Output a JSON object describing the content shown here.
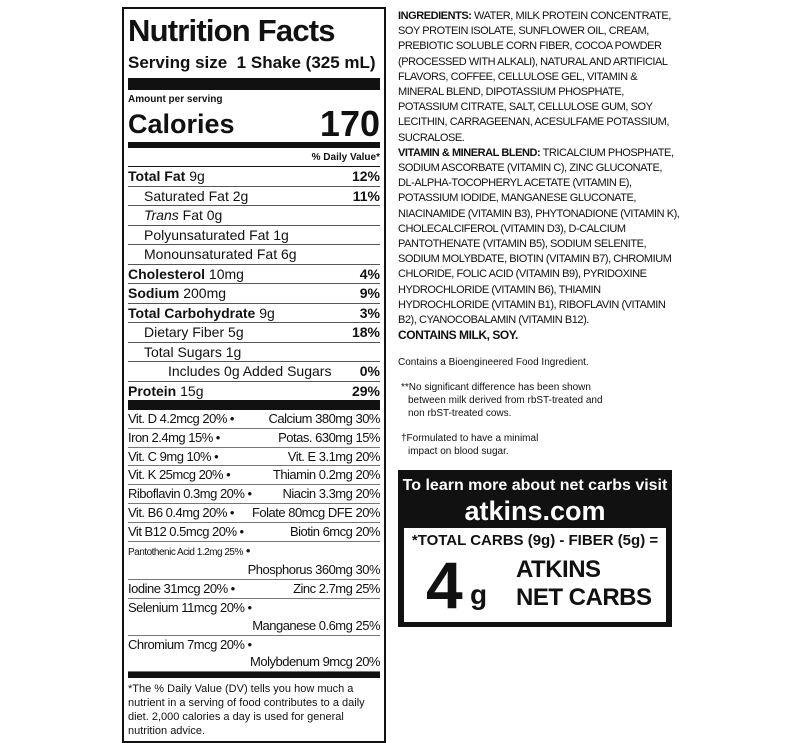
{
  "facts": {
    "title": "Nutrition Facts",
    "serving_label": "Serving size",
    "serving_value": "1 Shake (325 mL)",
    "amount_per_serving": "Amount per serving",
    "calories_label": "Calories",
    "calories_value": "170",
    "dv_header": "% Daily Value*",
    "rows": [
      {
        "name": "Total Fat",
        "amount": "9g",
        "dv": "12%"
      },
      {
        "name": "Saturated Fat",
        "amount": "2g",
        "dv": "11%"
      },
      {
        "name": "Trans",
        "amount": "Fat 0g",
        "dv": ""
      },
      {
        "name": "Polyunsaturated Fat",
        "amount": "1g",
        "dv": ""
      },
      {
        "name": "Monounsaturated Fat",
        "amount": "6g",
        "dv": ""
      },
      {
        "name": "Cholesterol",
        "amount": "10mg",
        "dv": "4%"
      },
      {
        "name": "Sodium",
        "amount": "200mg",
        "dv": "9%"
      },
      {
        "name": "Total Carbohydrate",
        "amount": "9g",
        "dv": "3%"
      },
      {
        "name": "Dietary Fiber",
        "amount": "5g",
        "dv": "18%"
      },
      {
        "name": "Total Sugars",
        "amount": "1g",
        "dv": ""
      },
      {
        "name": "Includes 0g Added Sugars",
        "amount": "",
        "dv": "0%"
      },
      {
        "name": "Protein",
        "amount": "15g",
        "dv": "29%"
      }
    ],
    "vitamins": [
      [
        "Vit. D 4.2mcg 20%",
        "Calcium 380mg 30%"
      ],
      [
        "Iron 2.4mg 15%",
        "Potas. 630mg 15%"
      ],
      [
        "Vit. C 9mg 10%",
        "Vit. E 3.1mg 20%"
      ],
      [
        "Vit. K 25mcg 20%",
        "Thiamin 0.2mg 20%"
      ],
      [
        "Riboflavin 0.3mg 20%",
        "Niacin 3.3mg 20%"
      ],
      [
        "Vit. B6 0.4mg 20%",
        "Folate 80mcg DFE 20%"
      ],
      [
        "Vit B12 0.5mcg 20%",
        "Biotin 6mcg 20%"
      ],
      [
        "Pantothenic Acid 1.2mg 25%",
        "Phosphorus 360mg 30%"
      ],
      [
        "Iodine 31mcg 20%",
        "Zinc 2.7mg 25%"
      ],
      [
        "Selenium 11mcg 20%",
        "Manganese 0.6mg 25%"
      ],
      [
        "Chromium 7mcg 20%",
        "Molybdenum 9mcg 20%"
      ]
    ],
    "bullet": "•",
    "footnote": "*The % Daily Value (DV) tells you how much a nutrient in a serving of food contributes to a daily diet. 2,000 calories a day is used for general nutrition advice."
  },
  "ingredients": {
    "label": "INGREDIENTS:",
    "text": " WATER, MILK PROTEIN CONCENTRATE, SOY PROTEIN ISOLATE, SUNFLOWER OIL, CREAM, PREBIOTIC SOLUBLE CORN FIBER, COCOA POWDER (PROCESSED WITH ALKALI), NATURAL AND ARTIFICIAL FLAVORS, COFFEE, CELLULOSE GEL, VITAMIN & MINERAL BLEND, DIPOTASSIUM PHOSPHATE, POTASSIUM CITRATE, SALT, CELLULOSE GUM, SOY LECITHIN, CARRAGEENAN, ACESULFAME POTASSIUM, SUCRALOSE.",
    "blend_label": "VITAMIN & MINERAL BLEND:",
    "blend_text": " TRICALCIUM PHOSPHATE, SODIUM ASCORBATE (VITAMIN C), ZINC GLUCONATE, DL-ALPHA-TOCOPHERYL ACETATE (VITAMIN E), POTASSIUM IODIDE, MANGANESE GLUCONATE, NIACINAMIDE (VITAMIN B3), PHYTONADIONE (VITAMIN K), CHOLECALCIFEROL (VITAMIN D3), D-CALCIUM PANTOTHENATE (VITAMIN B5), SODIUM SELENITE, SODIUM MOLYBDATE, BIOTIN (VITAMIN B7), CHROMIUM CHLORIDE, FOLIC ACID (VITAMIN B9), PYRIDOXINE HYDROCHLORIDE (VITAMIN B6), THIAMIN HYDROCHLORIDE (VITAMIN B1), RIBOFLAVIN (VITAMIN B2), CYANOCOBALAMIN (VITAMIN B12).",
    "contains": "CONTAINS MILK, SOY."
  },
  "notes": {
    "bioengineered": "Contains a Bioengineered Food Ingredient.",
    "rbst": "**No significant difference has been shown between milk derived from rbST-treated and non rbST-treated cows.",
    "formulated": "†Formulated to have a minimal impact on blood sugar."
  },
  "promo": {
    "learn_more": "To learn more about net carbs visit",
    "website": "atkins.com",
    "formula": "*TOTAL CARBS (9g) - FIBER (5g) =",
    "net_value": "4",
    "net_unit": "g",
    "net_label_1": "ATKINS",
    "net_label_2": "NET CARBS"
  }
}
